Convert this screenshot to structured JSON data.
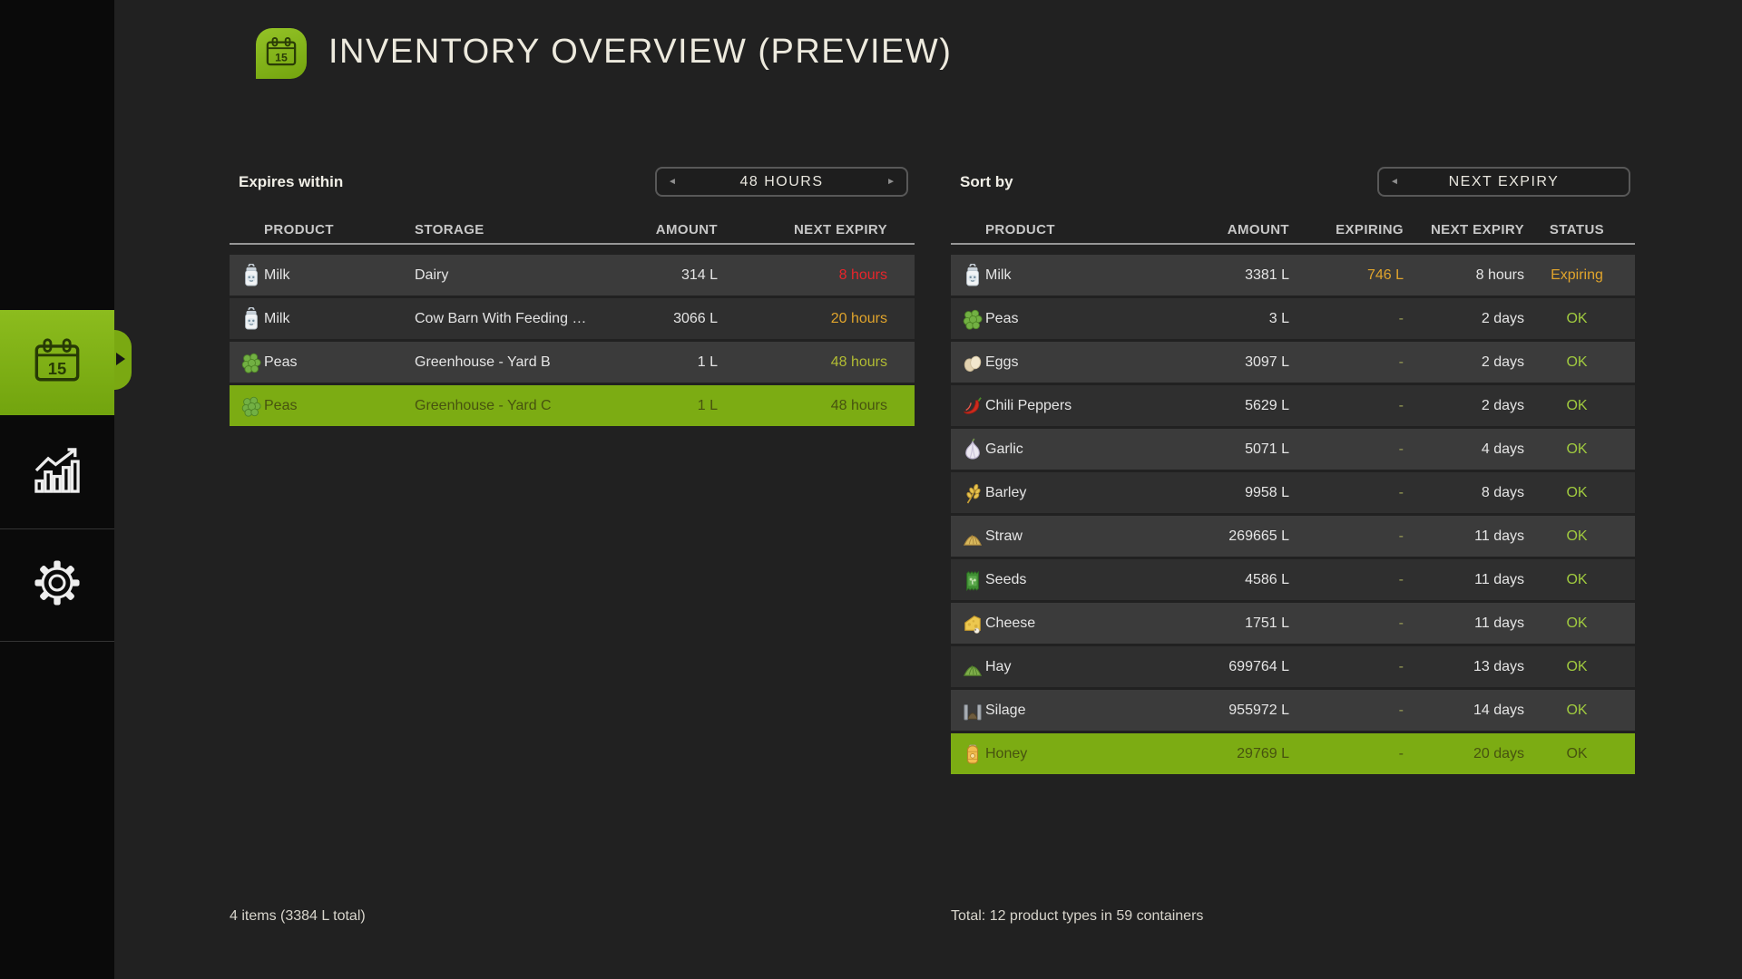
{
  "header": {
    "title": "INVENTORY OVERVIEW (PREVIEW)",
    "badge_icon": "calendar-15-icon"
  },
  "sidebar": {
    "items": [
      {
        "id": "inventory-overview",
        "icon": "calendar-15-icon",
        "active": true
      },
      {
        "id": "statistics",
        "icon": "bar-chart-icon",
        "active": false
      },
      {
        "id": "settings",
        "icon": "gear-icon",
        "active": false
      }
    ]
  },
  "left_panel": {
    "filter_label": "Expires within",
    "selector": {
      "value": "48 HOURS",
      "prev_glyph": "◄",
      "next_glyph": "►"
    },
    "columns": [
      "PRODUCT",
      "STORAGE",
      "AMOUNT",
      "NEXT EXPIRY"
    ],
    "rows": [
      {
        "icon": "milk",
        "product": "Milk",
        "storage": "Dairy",
        "amount": "314 L",
        "next_expiry": "8 hours",
        "expiry_color": "red",
        "highlighted": false
      },
      {
        "icon": "milk",
        "product": "Milk",
        "storage": "Cow Barn With Feeding Ro...",
        "amount": "3066 L",
        "next_expiry": "20 hours",
        "expiry_color": "orange",
        "highlighted": false
      },
      {
        "icon": "peas",
        "product": "Peas",
        "storage": "Greenhouse - Yard B",
        "amount": "1 L",
        "next_expiry": "48 hours",
        "expiry_color": "lime",
        "highlighted": false
      },
      {
        "icon": "peas",
        "product": "Peas",
        "storage": "Greenhouse - Yard C",
        "amount": "1 L",
        "next_expiry": "48 hours",
        "expiry_color": "lime",
        "highlighted": true
      }
    ],
    "footer": "4 items (3384 L total)"
  },
  "right_panel": {
    "filter_label": "Sort by",
    "selector": {
      "value": "NEXT EXPIRY",
      "prev_glyph": "◄",
      "next_glyph": ""
    },
    "columns": [
      "PRODUCT",
      "AMOUNT",
      "EXPIRING",
      "NEXT EXPIRY",
      "STATUS"
    ],
    "rows": [
      {
        "icon": "milk",
        "product": "Milk",
        "amount": "3381 L",
        "expiring": "746 L",
        "next_expiry": "8 hours",
        "status": "Expiring",
        "highlighted": false
      },
      {
        "icon": "peas",
        "product": "Peas",
        "amount": "3 L",
        "expiring": "-",
        "next_expiry": "2 days",
        "status": "OK",
        "highlighted": false
      },
      {
        "icon": "eggs",
        "product": "Eggs",
        "amount": "3097 L",
        "expiring": "-",
        "next_expiry": "2 days",
        "status": "OK",
        "highlighted": false
      },
      {
        "icon": "chili",
        "product": "Chili Peppers",
        "amount": "5629 L",
        "expiring": "-",
        "next_expiry": "2 days",
        "status": "OK",
        "highlighted": false
      },
      {
        "icon": "garlic",
        "product": "Garlic",
        "amount": "5071 L",
        "expiring": "-",
        "next_expiry": "4 days",
        "status": "OK",
        "highlighted": false
      },
      {
        "icon": "barley",
        "product": "Barley",
        "amount": "9958 L",
        "expiring": "-",
        "next_expiry": "8 days",
        "status": "OK",
        "highlighted": false
      },
      {
        "icon": "straw",
        "product": "Straw",
        "amount": "269665 L",
        "expiring": "-",
        "next_expiry": "11 days",
        "status": "OK",
        "highlighted": false
      },
      {
        "icon": "seeds",
        "product": "Seeds",
        "amount": "4586 L",
        "expiring": "-",
        "next_expiry": "11 days",
        "status": "OK",
        "highlighted": false
      },
      {
        "icon": "cheese",
        "product": "Cheese",
        "amount": "1751 L",
        "expiring": "-",
        "next_expiry": "11 days",
        "status": "OK",
        "highlighted": false
      },
      {
        "icon": "hay",
        "product": "Hay",
        "amount": "699764 L",
        "expiring": "-",
        "next_expiry": "13 days",
        "status": "OK",
        "highlighted": false
      },
      {
        "icon": "silage",
        "product": "Silage",
        "amount": "955972 L",
        "expiring": "-",
        "next_expiry": "14 days",
        "status": "OK",
        "highlighted": false
      },
      {
        "icon": "honey",
        "product": "Honey",
        "amount": "29769 L",
        "expiring": "-",
        "next_expiry": "20 days",
        "status": "OK",
        "highlighted": true
      }
    ],
    "footer": "Total: 12 product types in 59 containers"
  },
  "colors": {
    "accent_green": "#7cac13",
    "sidebar_bg": "#0a0a0a",
    "main_bg": "#212121",
    "row_light": "#3b3b3b",
    "row_dark": "#2f2f2f",
    "status_red": "#e8252b",
    "status_orange": "#e0a42c",
    "status_lime": "#b2bc33",
    "status_ok": "#a0ca3f",
    "on_green_text": "#47530f"
  }
}
